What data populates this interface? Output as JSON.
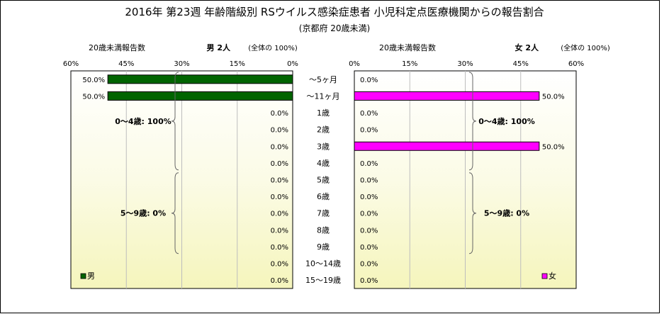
{
  "chart_data": {
    "type": "bar",
    "title": "2016年 第23週 年齢階級別 RSウイルス感染症患者 小児科定点医療機関からの報告割合",
    "subtitle": "(京都府 20歳未満)",
    "categories": [
      "～5ヶ月",
      "～11ヶ月",
      "1歳",
      "2歳",
      "3歳",
      "4歳",
      "5歳",
      "6歳",
      "7歳",
      "8歳",
      "9歳",
      "10～14歳",
      "15～19歳"
    ],
    "ylim": [
      0,
      60
    ],
    "ticks": [
      "0%",
      "15%",
      "30%",
      "45%",
      "60%"
    ],
    "grid": true,
    "panels": [
      {
        "id": "male",
        "header_left": "20歳未満報告数",
        "header_main": "男  2人",
        "header_note": "(全体の  100%)",
        "series": [
          {
            "name": "男",
            "color": "#006400",
            "values": [
              50.0,
              50.0,
              0,
              0,
              0,
              0,
              0,
              0,
              0,
              0,
              0,
              0,
              0
            ],
            "labels": [
              "50.0%",
              "50.0%",
              "0.0%",
              "0.0%",
              "0.0%",
              "0.0%",
              "0.0%",
              "0.0%",
              "0.0%",
              "0.0%",
              "0.0%",
              "0.0%",
              "0.0%"
            ]
          }
        ],
        "brackets": [
          {
            "label": "0～4歳: 100%",
            "from": 0,
            "to": 5
          },
          {
            "label": "5～9歳: 0%",
            "from": 6,
            "to": 10
          }
        ],
        "legend": "男"
      },
      {
        "id": "female",
        "header_left": "20歳未満報告数",
        "header_main": "女  2人",
        "header_note": "(全体の  100%)",
        "series": [
          {
            "name": "女",
            "color": "#ff00ff",
            "values": [
              0,
              50.0,
              0,
              0,
              50.0,
              0,
              0,
              0,
              0,
              0,
              0,
              0,
              0
            ],
            "labels": [
              "0.0%",
              "50.0%",
              "0.0%",
              "0.0%",
              "50.0%",
              "0.0%",
              "0.0%",
              "0.0%",
              "0.0%",
              "0.0%",
              "0.0%",
              "0.0%",
              "0.0%"
            ]
          }
        ],
        "brackets": [
          {
            "label": "0～4歳: 100%",
            "from": 0,
            "to": 5
          },
          {
            "label": "5～9歳: 0%",
            "from": 6,
            "to": 10
          }
        ],
        "legend": "女"
      }
    ]
  }
}
